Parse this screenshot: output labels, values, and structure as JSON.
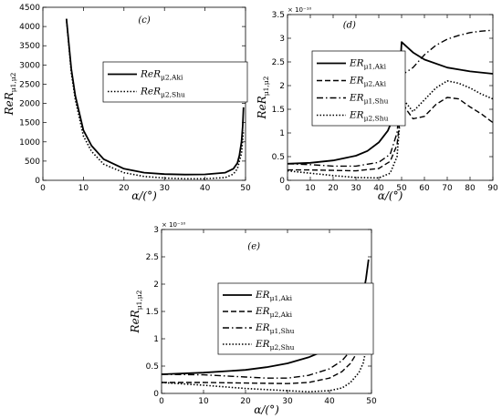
{
  "chart_data": [
    {
      "type": "line",
      "panel_label": "(c)",
      "xlabel": "α/(°)",
      "ylabel": "ReR_μ1,μ2",
      "xlim": [
        0,
        50
      ],
      "ylim": [
        0,
        4500
      ],
      "xticks": [
        0,
        10,
        20,
        30,
        40,
        50
      ],
      "yticks": [
        0,
        500,
        1000,
        1500,
        2000,
        2500,
        3000,
        3500,
        4000,
        4500
      ],
      "legend_position": "top-right",
      "series": [
        {
          "name": "ReR_μ2,Aki",
          "style": "solid",
          "x": [
            5.8,
            7,
            8,
            10,
            12,
            15,
            20,
            25,
            30,
            35,
            40,
            45,
            47,
            48,
            48.5,
            49,
            49.3,
            49.5
          ],
          "y": [
            4200,
            2900,
            2200,
            1300,
            900,
            550,
            300,
            200,
            160,
            150,
            155,
            200,
            300,
            450,
            650,
            1000,
            1400,
            1900
          ]
        },
        {
          "name": "ReR_μ2,Shu",
          "style": "dotted",
          "x": [
            5.8,
            7,
            8,
            10,
            12,
            15,
            20,
            25,
            30,
            35,
            40,
            45,
            47,
            48,
            49,
            49.5
          ],
          "y": [
            4200,
            2800,
            2100,
            1150,
            750,
            420,
            200,
            100,
            60,
            40,
            40,
            70,
            160,
            300,
            700,
            1300
          ]
        }
      ]
    },
    {
      "type": "line",
      "panel_label": "(d)",
      "xlabel": "α/(°)",
      "ylabel": "ReR_μ1,μ2",
      "y_multiplier": "× 10⁻¹⁰",
      "xlim": [
        0,
        90
      ],
      "ylim": [
        0,
        3.5
      ],
      "xticks": [
        0,
        10,
        20,
        30,
        40,
        50,
        60,
        70,
        80,
        90
      ],
      "yticks": [
        0,
        0.5,
        1,
        1.5,
        2,
        2.5,
        3,
        3.5
      ],
      "legend_position": "top-right",
      "series": [
        {
          "name": "ER_μ1,Aki",
          "style": "solid",
          "x": [
            0,
            10,
            20,
            30,
            35,
            40,
            44,
            47,
            48.5,
            49.5,
            50,
            55,
            60,
            70,
            80,
            90
          ],
          "y": [
            0.35,
            0.37,
            0.42,
            0.52,
            0.62,
            0.8,
            1.05,
            1.4,
            1.8,
            2.5,
            2.92,
            2.7,
            2.55,
            2.38,
            2.3,
            2.25
          ]
        },
        {
          "name": "ER_μ2,Aki",
          "style": "dashed",
          "x": [
            0,
            10,
            20,
            30,
            40,
            45,
            48,
            49.5,
            50,
            52,
            55,
            60,
            65,
            70,
            75,
            80,
            85,
            90
          ],
          "y": [
            0.22,
            0.22,
            0.21,
            0.2,
            0.25,
            0.4,
            0.75,
            1.4,
            1.7,
            1.5,
            1.3,
            1.35,
            1.6,
            1.75,
            1.72,
            1.55,
            1.4,
            1.22
          ]
        },
        {
          "name": "ER_μ1,Shu",
          "style": "dashdot",
          "x": [
            0,
            10,
            20,
            30,
            40,
            45,
            48,
            49.5,
            50,
            55,
            60,
            65,
            70,
            75,
            80,
            85,
            90
          ],
          "y": [
            0.35,
            0.33,
            0.3,
            0.3,
            0.38,
            0.55,
            1.0,
            1.8,
            2.22,
            2.38,
            2.65,
            2.85,
            2.98,
            3.06,
            3.12,
            3.15,
            3.17
          ]
        },
        {
          "name": "ER_μ2,Shu",
          "style": "dotted",
          "x": [
            0,
            10,
            20,
            30,
            40,
            45,
            48,
            49.5,
            50,
            55,
            60,
            65,
            70,
            75,
            80,
            85,
            90
          ],
          "y": [
            0.2,
            0.15,
            0.1,
            0.06,
            0.05,
            0.15,
            0.5,
            1.4,
            1.75,
            1.45,
            1.7,
            1.95,
            2.1,
            2.05,
            1.95,
            1.82,
            1.72
          ]
        }
      ]
    },
    {
      "type": "line",
      "panel_label": "(e)",
      "xlabel": "α/(°)",
      "ylabel": "ReR_μ1,μ2",
      "y_multiplier": "× 10⁻¹⁰",
      "xlim": [
        0,
        50
      ],
      "ylim": [
        0,
        3
      ],
      "xticks": [
        0,
        10,
        20,
        30,
        40,
        50
      ],
      "yticks": [
        0,
        0.5,
        1,
        1.5,
        2,
        2.5,
        3
      ],
      "legend_position": "center-right",
      "series": [
        {
          "name": "ER_μ1,Aki",
          "style": "solid",
          "x": [
            0,
            10,
            20,
            25,
            30,
            35,
            40,
            43,
            45,
            47,
            48,
            48.7,
            49.3
          ],
          "y": [
            0.35,
            0.38,
            0.43,
            0.48,
            0.55,
            0.66,
            0.82,
            1.0,
            1.18,
            1.5,
            1.8,
            2.1,
            2.45
          ]
        },
        {
          "name": "ER_μ2,Aki",
          "style": "dashed",
          "x": [
            0,
            10,
            20,
            30,
            35,
            40,
            43,
            45,
            47,
            48,
            48.7,
            49.3
          ],
          "y": [
            0.2,
            0.2,
            0.19,
            0.18,
            0.2,
            0.28,
            0.4,
            0.55,
            0.8,
            1.0,
            1.2,
            1.5
          ]
        },
        {
          "name": "ER_μ1,Shu",
          "style": "dashdot",
          "x": [
            0,
            10,
            20,
            25,
            30,
            35,
            40,
            43,
            45,
            47,
            48,
            48.7,
            49.3
          ],
          "y": [
            0.35,
            0.34,
            0.3,
            0.28,
            0.28,
            0.33,
            0.45,
            0.6,
            0.78,
            1.05,
            1.25,
            1.45,
            1.7
          ]
        },
        {
          "name": "ER_μ2,Shu",
          "style": "dotted",
          "x": [
            0,
            10,
            20,
            30,
            35,
            40,
            43,
            45,
            47,
            48,
            48.7,
            49.3
          ],
          "y": [
            0.2,
            0.15,
            0.09,
            0.05,
            0.03,
            0.05,
            0.1,
            0.2,
            0.38,
            0.55,
            0.8,
            1.1
          ]
        }
      ]
    }
  ]
}
